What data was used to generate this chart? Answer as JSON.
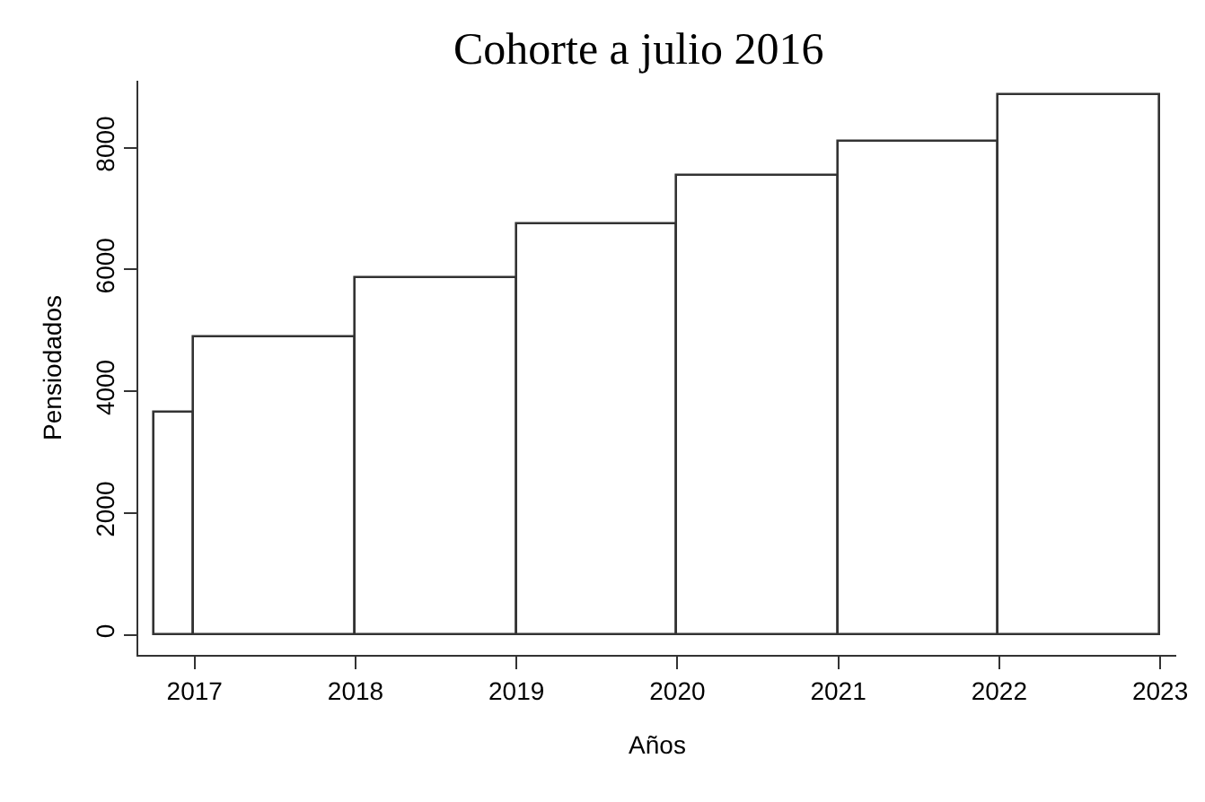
{
  "chart_data": {
    "type": "histogram",
    "title": "Cohorte a julio 2016",
    "xlabel": "Años",
    "ylabel": "Pensiodados",
    "bins": [
      2016.75,
      2017,
      2018,
      2019,
      2020,
      2021,
      2022,
      2023
    ],
    "values": [
      3650,
      4900,
      5850,
      6750,
      7550,
      8100,
      8850
    ],
    "color": "#ffffff",
    "xlim": [
      2016.65,
      2023.1
    ],
    "xticks": [
      2017,
      2018,
      2019,
      2020,
      2021,
      2022,
      2023
    ],
    "ylim": [
      -330,
      9100
    ],
    "yticks": [
      0,
      2000,
      4000,
      6000,
      8000
    ]
  }
}
